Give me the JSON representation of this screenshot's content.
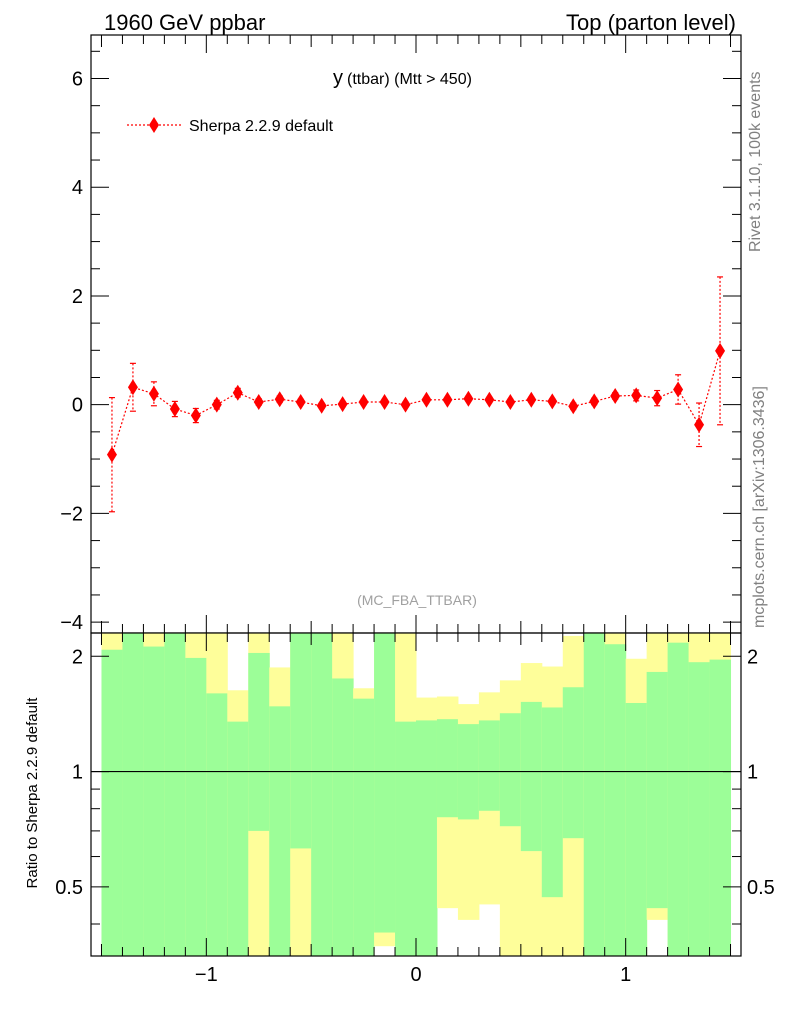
{
  "header": {
    "left": "1960 GeV ppbar",
    "right": "Top (parton level)"
  },
  "side_labels": {
    "rivet": "Rivet 3.1.10,  100k events",
    "source": "mcplots.cern.ch [arXiv:1306.3436]"
  },
  "chart_data": [
    {
      "type": "line",
      "title_main": "y",
      "title_rest": "(ttbar) (Mtt > 450)",
      "watermark": "(MC_FBA_TTBAR)",
      "xlim": [
        -1.55,
        1.55
      ],
      "ylim": [
        -4.2,
        6.8
      ],
      "x_ticks": [
        "-1",
        "0",
        "1"
      ],
      "y_ticks": [
        "-4",
        "-2",
        "0",
        "2",
        "4",
        "6"
      ],
      "legend_position": "top-left",
      "series": [
        {
          "name": "Sherpa 2.2.9 default",
          "color": "#ff0000",
          "x": [
            -1.45,
            -1.35,
            -1.25,
            -1.15,
            -1.05,
            -0.95,
            -0.85,
            -0.75,
            -0.65,
            -0.55,
            -0.45,
            -0.35,
            -0.25,
            -0.15,
            -0.05,
            0.05,
            0.15,
            0.25,
            0.35,
            0.45,
            0.55,
            0.65,
            0.75,
            0.85,
            0.95,
            1.05,
            1.15,
            1.25,
            1.35,
            1.45
          ],
          "y": [
            -0.92,
            0.32,
            0.2,
            -0.08,
            -0.2,
            0.0,
            0.22,
            0.05,
            0.1,
            0.05,
            -0.02,
            0.01,
            0.05,
            0.05,
            0.0,
            0.09,
            0.09,
            0.11,
            0.09,
            0.05,
            0.09,
            0.06,
            -0.03,
            0.06,
            0.16,
            0.17,
            0.12,
            0.28,
            -0.37,
            0.99
          ],
          "y_err": [
            1.05,
            0.44,
            0.22,
            0.14,
            0.13,
            0.08,
            0.08,
            0.06,
            0.06,
            0.05,
            0.05,
            0.05,
            0.05,
            0.05,
            0.05,
            0.05,
            0.05,
            0.05,
            0.05,
            0.05,
            0.05,
            0.05,
            0.06,
            0.06,
            0.06,
            0.1,
            0.14,
            0.27,
            0.4,
            1.36
          ]
        }
      ]
    },
    {
      "type": "area",
      "ylabel": "Ratio to Sherpa 2.2.9 default",
      "xlim": [
        -1.55,
        1.55
      ],
      "ylim": [
        0.33,
        2.3
      ],
      "ratio_scale": "log",
      "x_ticks": [
        "-1",
        "0",
        "1"
      ],
      "y_ticks": [
        "0.5",
        "1",
        "2"
      ],
      "reference_line": 1.0,
      "band_colors": {
        "green": "#9cfe98",
        "yellow": "#fefe9a"
      },
      "bin_edges": [
        -1.5,
        -1.4,
        -1.3,
        -1.2,
        -1.1,
        -1.0,
        -0.9,
        -0.8,
        -0.7,
        -0.6,
        -0.5,
        -0.4,
        -0.3,
        -0.2,
        -0.1,
        0.0,
        0.1,
        0.2,
        0.3,
        0.4,
        0.5,
        0.6,
        0.7,
        0.8,
        0.9,
        1.0,
        1.1,
        1.2,
        1.3,
        1.4,
        1.5
      ],
      "green_up": [
        2.08,
        2.3,
        2.12,
        2.3,
        1.98,
        1.6,
        1.35,
        2.04,
        1.48,
        2.3,
        2.3,
        1.75,
        1.55,
        2.3,
        1.35,
        1.36,
        1.37,
        1.33,
        1.36,
        1.42,
        1.52,
        1.47,
        1.66,
        2.3,
        2.15,
        1.51,
        1.82,
        2.17,
        1.93,
        1.96
      ],
      "yellow_up": [
        2.3,
        2.3,
        2.3,
        2.3,
        2.3,
        2.3,
        1.63,
        2.3,
        1.87,
        2.3,
        2.3,
        2.3,
        1.65,
        2.3,
        2.3,
        1.56,
        1.57,
        1.5,
        1.61,
        1.73,
        1.92,
        1.88,
        2.26,
        2.3,
        2.3,
        1.97,
        2.3,
        2.3,
        2.3,
        2.3
      ],
      "green_dn": [
        0.33,
        0.33,
        0.33,
        0.33,
        0.33,
        0.33,
        0.33,
        0.7,
        0.33,
        0.63,
        0.33,
        0.33,
        0.33,
        0.38,
        0.33,
        0.33,
        0.76,
        0.75,
        0.79,
        0.72,
        0.62,
        0.47,
        0.67,
        0.33,
        0.33,
        0.33,
        0.44,
        0.33,
        0.33,
        0.33
      ],
      "yellow_dn": [
        0.33,
        0.33,
        0.33,
        0.33,
        0.33,
        0.33,
        0.33,
        0.33,
        0.33,
        0.33,
        0.33,
        0.33,
        0.33,
        0.35,
        0.33,
        0.33,
        0.44,
        0.41,
        0.45,
        0.33,
        0.33,
        0.33,
        0.33,
        0.33,
        0.33,
        0.33,
        0.41,
        0.33,
        0.33,
        0.33
      ]
    }
  ]
}
